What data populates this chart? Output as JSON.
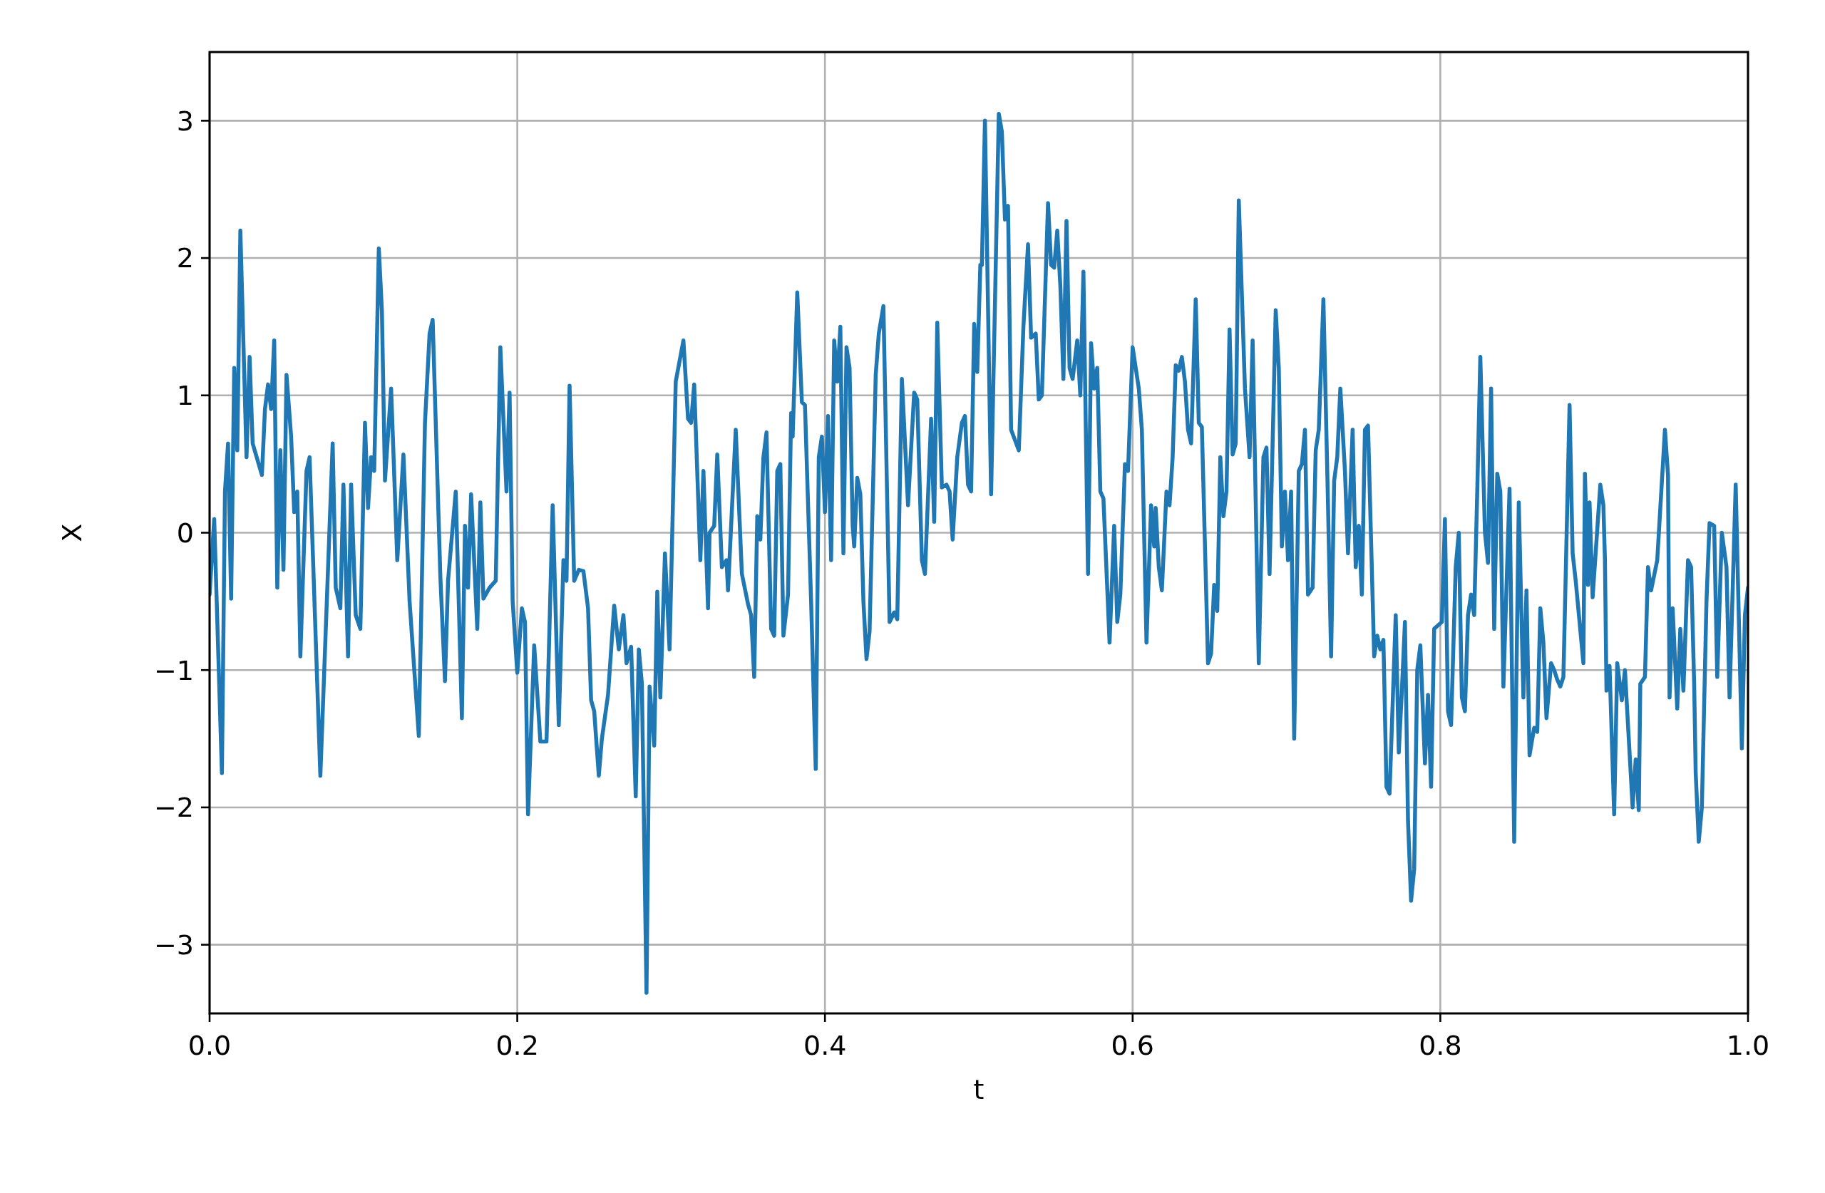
{
  "chart_data": {
    "type": "line",
    "xlabel": "t",
    "ylabel": "X",
    "xlim": [
      0,
      1
    ],
    "ylim": [
      -3.5,
      3.5
    ],
    "xticks": [
      {
        "value": 0,
        "label": "0.0"
      },
      {
        "value": 0.2,
        "label": "0.2"
      },
      {
        "value": 0.4,
        "label": "0.4"
      },
      {
        "value": 0.6,
        "label": "0.6"
      },
      {
        "value": 0.8,
        "label": "0.8"
      },
      {
        "value": 1,
        "label": "1.0"
      }
    ],
    "yticks": [
      {
        "value": -3,
        "label": "−3"
      },
      {
        "value": -2,
        "label": "−2"
      },
      {
        "value": -1,
        "label": "−1"
      },
      0,
      1,
      2,
      3
    ],
    "grid": true,
    "marker": "none",
    "line_style": "solid",
    "series": [
      {
        "color": "#1f77b4",
        "x": [
          0,
          0.003,
          0.008,
          0.01,
          0.012,
          0.014,
          0.016,
          0.018,
          0.02,
          0.024,
          0.026,
          0.028,
          0.034,
          0.036,
          0.038,
          0.04,
          0.042,
          0.044,
          0.046,
          0.048,
          0.05,
          0.053,
          0.055,
          0.057,
          0.059,
          0.063,
          0.065,
          0.072,
          0.08,
          0.082,
          0.085,
          0.087,
          0.09,
          0.092,
          0.095,
          0.098,
          0.101,
          0.103,
          0.105,
          0.107,
          0.11,
          0.112,
          0.114,
          0.118,
          0.122,
          0.126,
          0.13,
          0.136,
          0.14,
          0.143,
          0.145,
          0.15,
          0.153,
          0.155,
          0.16,
          0.164,
          0.166,
          0.168,
          0.17,
          0.174,
          0.176,
          0.178,
          0.182,
          0.186,
          0.189,
          0.193,
          0.195,
          0.197,
          0.2,
          0.203,
          0.205,
          0.207,
          0.211,
          0.215,
          0.219,
          0.223,
          0.227,
          0.23,
          0.232,
          0.234,
          0.237,
          0.24,
          0.243,
          0.246,
          0.248,
          0.25,
          0.253,
          0.255,
          0.259,
          0.263,
          0.266,
          0.269,
          0.271,
          0.274,
          0.277,
          0.279,
          0.281,
          0.284,
          0.286,
          0.289,
          0.291,
          0.293,
          0.296,
          0.299,
          0.303,
          0.308,
          0.311,
          0.313,
          0.315,
          0.319,
          0.321,
          0.324,
          0.325,
          0.328,
          0.33,
          0.333,
          0.336,
          0.337,
          0.342,
          0.346,
          0.35,
          0.352,
          0.354,
          0.356,
          0.358,
          0.36,
          0.362,
          0.365,
          0.367,
          0.369,
          0.371,
          0.373,
          0.376,
          0.378,
          0.379,
          0.382,
          0.385,
          0.387,
          0.391,
          0.394,
          0.396,
          0.398,
          0.4,
          0.402,
          0.404,
          0.406,
          0.408,
          0.41,
          0.412,
          0.414,
          0.416,
          0.418,
          0.419,
          0.421,
          0.423,
          0.425,
          0.427,
          0.429,
          0.433,
          0.435,
          0.438,
          0.442,
          0.445,
          0.447,
          0.45,
          0.454,
          0.458,
          0.46,
          0.463,
          0.465,
          0.469,
          0.471,
          0.473,
          0.476,
          0.479,
          0.481,
          0.483,
          0.486,
          0.489,
          0.491,
          0.493,
          0.495,
          0.497,
          0.499,
          0.501,
          0.502,
          0.504,
          0.508,
          0.513,
          0.515,
          0.517,
          0.519,
          0.521,
          0.526,
          0.529,
          0.532,
          0.534,
          0.537,
          0.539,
          0.541,
          0.545,
          0.547,
          0.549,
          0.551,
          0.553,
          0.555,
          0.557,
          0.559,
          0.561,
          0.564,
          0.566,
          0.568,
          0.571,
          0.573,
          0.575,
          0.577,
          0.579,
          0.581,
          0.585,
          0.588,
          0.59,
          0.592,
          0.595,
          0.597,
          0.6,
          0.604,
          0.606,
          0.609,
          0.612,
          0.614,
          0.615,
          0.617,
          0.619,
          0.622,
          0.624,
          0.626,
          0.628,
          0.63,
          0.632,
          0.634,
          0.636,
          0.638,
          0.641,
          0.643,
          0.645,
          0.649,
          0.651,
          0.653,
          0.655,
          0.657,
          0.659,
          0.661,
          0.663,
          0.665,
          0.667,
          0.669,
          0.673,
          0.676,
          0.678,
          0.682,
          0.685,
          0.687,
          0.689,
          0.693,
          0.695,
          0.697,
          0.699,
          0.701,
          0.703,
          0.705,
          0.708,
          0.71,
          0.712,
          0.714,
          0.717,
          0.719,
          0.721,
          0.724,
          0.727,
          0.729,
          0.731,
          0.733,
          0.735,
          0.738,
          0.74,
          0.743,
          0.745,
          0.747,
          0.749,
          0.751,
          0.753,
          0.757,
          0.759,
          0.761,
          0.763,
          0.765,
          0.767,
          0.771,
          0.773,
          0.775,
          0.777,
          0.779,
          0.781,
          0.783,
          0.785,
          0.787,
          0.79,
          0.792,
          0.794,
          0.796,
          0.798,
          0.801,
          0.803,
          0.805,
          0.807,
          0.81,
          0.812,
          0.814,
          0.816,
          0.818,
          0.82,
          0.822,
          0.824,
          0.826,
          0.829,
          0.831,
          0.833,
          0.835,
          0.837,
          0.839,
          0.841,
          0.845,
          0.848,
          0.851,
          0.854,
          0.856,
          0.858,
          0.861,
          0.863,
          0.865,
          0.867,
          0.869,
          0.872,
          0.874,
          0.876,
          0.878,
          0.88,
          0.884,
          0.886,
          0.888,
          0.893,
          0.894,
          0.896,
          0.897,
          0.899,
          0.904,
          0.906,
          0.907,
          0.908,
          0.91,
          0.913,
          0.915,
          0.918,
          0.92,
          0.925,
          0.927,
          0.929,
          0.93,
          0.933,
          0.935,
          0.937,
          0.941,
          0.946,
          0.948,
          0.949,
          0.951,
          0.954,
          0.956,
          0.958,
          0.961,
          0.963,
          0.965,
          0.966,
          0.968,
          0.97,
          0.973,
          0.975,
          0.978,
          0.98,
          0.983,
          0.986,
          0.988,
          0.992,
          0.996,
          0.998,
          1
        ],
        "values": [
          -0.45,
          0.1,
          -1.75,
          0.3,
          0.65,
          -0.48,
          1.2,
          0.6,
          2.2,
          0.55,
          1.28,
          0.65,
          0.42,
          0.9,
          1.08,
          0.9,
          1.4,
          -0.4,
          0.6,
          -0.27,
          1.15,
          0.7,
          0.15,
          0.3,
          -0.9,
          0.45,
          0.55,
          -1.77,
          0.65,
          -0.4,
          -0.55,
          0.35,
          -0.9,
          0.35,
          -0.6,
          -0.7,
          0.8,
          0.18,
          0.55,
          0.45,
          2.07,
          1.62,
          0.38,
          1.05,
          -0.2,
          0.57,
          -0.5,
          -1.48,
          0.8,
          1.45,
          1.55,
          -0.32,
          -1.08,
          -0.35,
          0.3,
          -1.35,
          0.05,
          -0.4,
          0.28,
          -0.7,
          0.22,
          -0.48,
          -0.4,
          -0.35,
          1.35,
          0.3,
          1.02,
          -0.5,
          -1.02,
          -0.55,
          -0.65,
          -2.05,
          -0.82,
          -1.52,
          -1.52,
          0.2,
          -1.4,
          -0.2,
          -0.35,
          1.07,
          -0.35,
          -0.27,
          -0.28,
          -0.55,
          -1.22,
          -1.3,
          -1.77,
          -1.5,
          -1.18,
          -0.53,
          -0.85,
          -0.6,
          -0.95,
          -0.83,
          -1.92,
          -0.85,
          -1.1,
          -3.35,
          -1.12,
          -1.55,
          -0.43,
          -1.2,
          -0.15,
          -0.85,
          1.1,
          1.4,
          0.83,
          0.8,
          1.08,
          -0.2,
          0.45,
          -0.55,
          0,
          0.05,
          0.57,
          -0.25,
          -0.2,
          -0.42,
          0.75,
          -0.3,
          -0.52,
          -0.6,
          -1.05,
          0.12,
          -0.05,
          0.55,
          0.73,
          -0.7,
          -0.75,
          0.45,
          0.5,
          -0.75,
          -0.45,
          0.87,
          0.7,
          1.75,
          0.95,
          0.93,
          -0.5,
          -1.72,
          0.55,
          0.7,
          0.15,
          0.85,
          -0.2,
          1.4,
          1.1,
          1.5,
          -0.15,
          1.35,
          1.2,
          0.05,
          -0.1,
          0.4,
          0.28,
          -0.5,
          -0.92,
          -0.72,
          1.15,
          1.45,
          1.65,
          -0.65,
          -0.58,
          -0.63,
          1.12,
          0.2,
          1.02,
          0.97,
          -0.2,
          -0.3,
          0.83,
          0.08,
          1.53,
          0.33,
          0.35,
          0.3,
          -0.05,
          0.55,
          0.8,
          0.85,
          0.35,
          0.3,
          1.52,
          1.17,
          1.95,
          1.95,
          3,
          0.28,
          3.05,
          2.92,
          2.28,
          2.38,
          0.75,
          0.6,
          1.5,
          2.1,
          1.42,
          1.45,
          0.97,
          1,
          2.4,
          1.95,
          1.93,
          2.2,
          1.8,
          1.12,
          2.27,
          1.2,
          1.12,
          1.4,
          1,
          1.9,
          -0.3,
          1.38,
          1.05,
          1.2,
          0.3,
          0.25,
          -0.8,
          0.05,
          -0.65,
          -0.45,
          0.5,
          0.45,
          1.35,
          1.05,
          0.75,
          -0.8,
          0.2,
          -0.1,
          0.18,
          -0.25,
          -0.42,
          0.3,
          0.2,
          0.55,
          1.22,
          1.18,
          1.28,
          1.1,
          0.75,
          0.65,
          1.7,
          0.8,
          0.77,
          -0.95,
          -0.88,
          -0.38,
          -0.57,
          0.55,
          0.12,
          0.3,
          1.48,
          0.57,
          0.65,
          2.42,
          1.05,
          0.55,
          1.4,
          -0.95,
          0.55,
          0.62,
          -0.3,
          1.62,
          1.2,
          -0.1,
          0.3,
          -0.2,
          0.3,
          -1.5,
          0.45,
          0.5,
          0.75,
          -0.45,
          -0.4,
          0.6,
          0.75,
          1.7,
          0.2,
          -0.9,
          0.38,
          0.55,
          1.05,
          0.45,
          -0.15,
          0.75,
          -0.25,
          0.05,
          -0.45,
          0.75,
          0.78,
          -0.9,
          -0.75,
          -0.85,
          -0.78,
          -1.85,
          -1.9,
          -0.6,
          -1.6,
          -1.15,
          -0.65,
          -2.1,
          -2.68,
          -2.45,
          -1,
          -0.82,
          -1.68,
          -1.18,
          -1.85,
          -0.7,
          -0.68,
          -0.65,
          0.1,
          -1.3,
          -1.4,
          -0.25,
          0,
          -1.2,
          -1.3,
          -0.6,
          -0.45,
          -0.6,
          0.3,
          1.28,
          0,
          -0.22,
          1.05,
          -0.7,
          0.43,
          0.3,
          -1.12,
          0.32,
          -2.25,
          0.22,
          -1.2,
          -0.42,
          -1.62,
          -1.42,
          -1.45,
          -0.55,
          -0.8,
          -1.35,
          -0.95,
          -1,
          -1.07,
          -1.12,
          -1.05,
          0.93,
          -0.15,
          -0.35,
          -0.95,
          0.43,
          -0.38,
          0.22,
          -0.47,
          0.35,
          0.2,
          -0.2,
          -1.15,
          -0.97,
          -2.05,
          -0.95,
          -1.22,
          -1,
          -2,
          -1.65,
          -2.02,
          -1.1,
          -1.05,
          -0.25,
          -0.42,
          -0.2,
          0.75,
          0.42,
          -1.2,
          -0.55,
          -1.28,
          -0.7,
          -1.15,
          -0.2,
          -0.25,
          -1.1,
          -1.75,
          -2.25,
          -2,
          -0.5,
          0.07,
          0.05,
          -1.05,
          0,
          -0.25,
          -1.2,
          0.35,
          -1.57,
          -0.6,
          -0.4
        ]
      }
    ]
  }
}
